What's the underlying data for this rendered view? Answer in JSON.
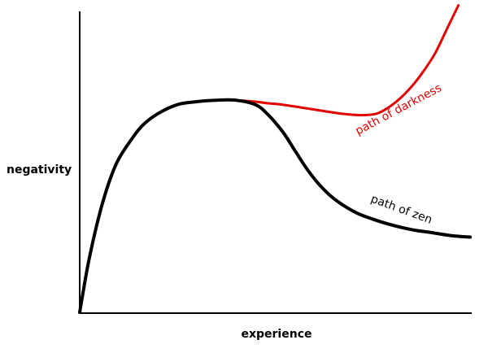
{
  "chart_data": {
    "type": "line",
    "title": "",
    "xlabel": "experience",
    "ylabel": "negativity",
    "xlim": [
      0,
      100
    ],
    "ylim": [
      0,
      100
    ],
    "grid": false,
    "legend": "none",
    "series": [
      {
        "name": "path of darkness",
        "color": "#e30000",
        "x": [
          0,
          2,
          4,
          6,
          8,
          10,
          13,
          16,
          20,
          25,
          30,
          35,
          40,
          45,
          48,
          52,
          57,
          62,
          67,
          72,
          76,
          79,
          82,
          85,
          88,
          91,
          94,
          97
        ],
        "y": [
          0,
          15,
          27,
          37,
          45,
          51,
          57,
          62,
          66,
          69,
          70,
          70.5,
          70.5,
          70,
          69.5,
          69,
          68,
          67,
          66,
          65.5,
          66,
          68,
          71,
          75,
          80,
          86,
          94,
          102
        ]
      },
      {
        "name": "path of zen",
        "color": "#000000",
        "x": [
          0,
          2,
          4,
          6,
          8,
          10,
          13,
          16,
          20,
          25,
          30,
          35,
          40,
          45,
          48,
          52,
          55,
          58,
          61,
          64,
          67,
          71,
          75,
          80,
          85,
          90,
          95,
          100
        ],
        "y": [
          0,
          15,
          27,
          37,
          45,
          51,
          57,
          62,
          66,
          69,
          70,
          70.5,
          70.5,
          69,
          66,
          60,
          54,
          48,
          43,
          39,
          36,
          33,
          31,
          29,
          27.5,
          26.5,
          25.5,
          25
        ]
      }
    ],
    "annotations": [
      {
        "text": "path of darkness",
        "series": 0
      },
      {
        "text": "path of zen",
        "series": 1
      }
    ]
  }
}
